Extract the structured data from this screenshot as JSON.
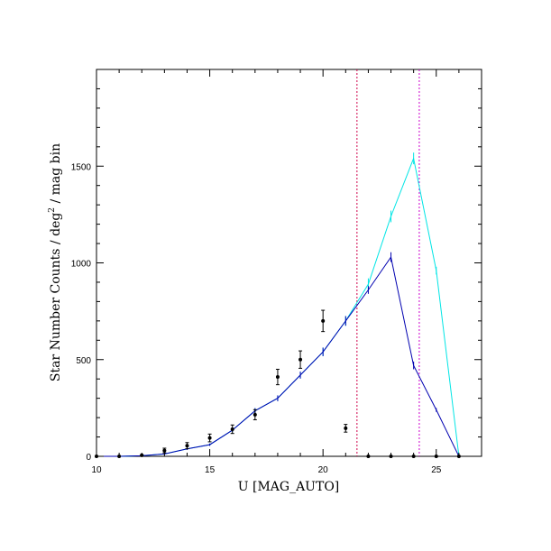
{
  "chart_data": {
    "type": "line",
    "xlabel": "U [MAG_AUTO]",
    "ylabel": "Star Number Counts / deg² / mag bin",
    "ylabel_parts": {
      "pre": "Star Number Counts / deg",
      "sup": "2",
      "post": " / mag bin"
    },
    "xlim": [
      10,
      27
    ],
    "ylim": [
      0,
      2000
    ],
    "x_ticks": [
      10,
      15,
      20,
      25
    ],
    "y_ticks": [
      0,
      500,
      1000,
      1500
    ],
    "x_tick_labels": [
      "10",
      "15",
      "20",
      "25"
    ],
    "y_tick_labels": [
      "0",
      "500",
      "1000",
      "1500"
    ],
    "grid": false,
    "vlines": [
      {
        "x": 21.5,
        "color": "#d0004a"
      },
      {
        "x": 24.25,
        "color": "#cc00cc"
      }
    ],
    "series": [
      {
        "kind": "line",
        "color": "#00e5e5",
        "x": [
          10,
          11,
          12,
          13,
          14,
          15,
          16,
          17,
          18,
          19,
          20,
          21,
          22,
          23,
          24,
          25,
          26
        ],
        "y": [
          0,
          0,
          3,
          12,
          38,
          60,
          135,
          235,
          300,
          420,
          540,
          700,
          890,
          1240,
          1540,
          960,
          0
        ],
        "err": [
          0,
          0,
          2,
          3,
          5,
          6,
          10,
          14,
          15,
          18,
          22,
          25,
          30,
          30,
          30,
          20,
          0
        ]
      },
      {
        "kind": "line",
        "color": "#0000b0",
        "x": [
          10,
          11,
          12,
          13,
          14,
          15,
          16,
          17,
          18,
          19,
          20,
          21,
          22,
          23,
          24,
          25,
          26
        ],
        "y": [
          0,
          0,
          3,
          12,
          38,
          60,
          135,
          235,
          300,
          420,
          540,
          700,
          860,
          1030,
          470,
          240,
          0
        ],
        "err": [
          0,
          0,
          2,
          3,
          5,
          6,
          10,
          14,
          15,
          18,
          22,
          25,
          20,
          25,
          20,
          10,
          0
        ]
      },
      {
        "kind": "points",
        "color": "#000000",
        "x": [
          10,
          11,
          12,
          13,
          14,
          15,
          16,
          17,
          18,
          19,
          20,
          21,
          22,
          23,
          24,
          25,
          26
        ],
        "y": [
          0,
          0,
          5,
          30,
          55,
          95,
          140,
          215,
          410,
          500,
          700,
          145,
          0,
          0,
          0,
          0,
          0
        ],
        "err": [
          0,
          0,
          3,
          12,
          16,
          20,
          22,
          26,
          40,
          45,
          55,
          20,
          0,
          0,
          0,
          0,
          0
        ]
      }
    ]
  }
}
